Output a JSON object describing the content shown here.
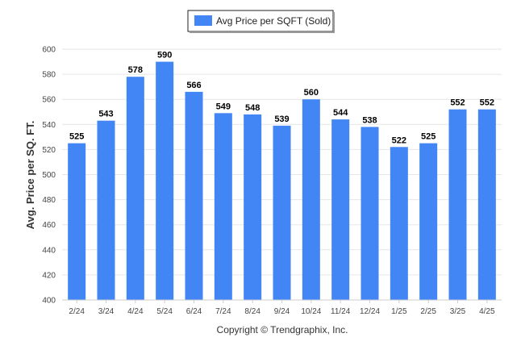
{
  "chart_data": {
    "type": "bar",
    "categories": [
      "2/24",
      "3/24",
      "4/24",
      "5/24",
      "6/24",
      "7/24",
      "8/24",
      "9/24",
      "10/24",
      "11/24",
      "12/24",
      "1/25",
      "2/25",
      "3/25",
      "4/25"
    ],
    "series": [
      {
        "name": "Avg Price per SQFT (Sold)",
        "values": [
          525,
          543,
          578,
          590,
          566,
          549,
          548,
          539,
          560,
          544,
          538,
          522,
          525,
          552,
          552
        ],
        "color": "#4285f4"
      }
    ],
    "ylabel": "Avg. Price per SQ. FT.",
    "ylim": [
      400,
      600
    ],
    "yticks": [
      400,
      420,
      440,
      460,
      480,
      500,
      520,
      540,
      560,
      580,
      600
    ],
    "grid": true,
    "legend_position": "top-center",
    "data_labels": true
  },
  "footer": {
    "copyright": "Copyright © Trendgraphix, Inc."
  }
}
